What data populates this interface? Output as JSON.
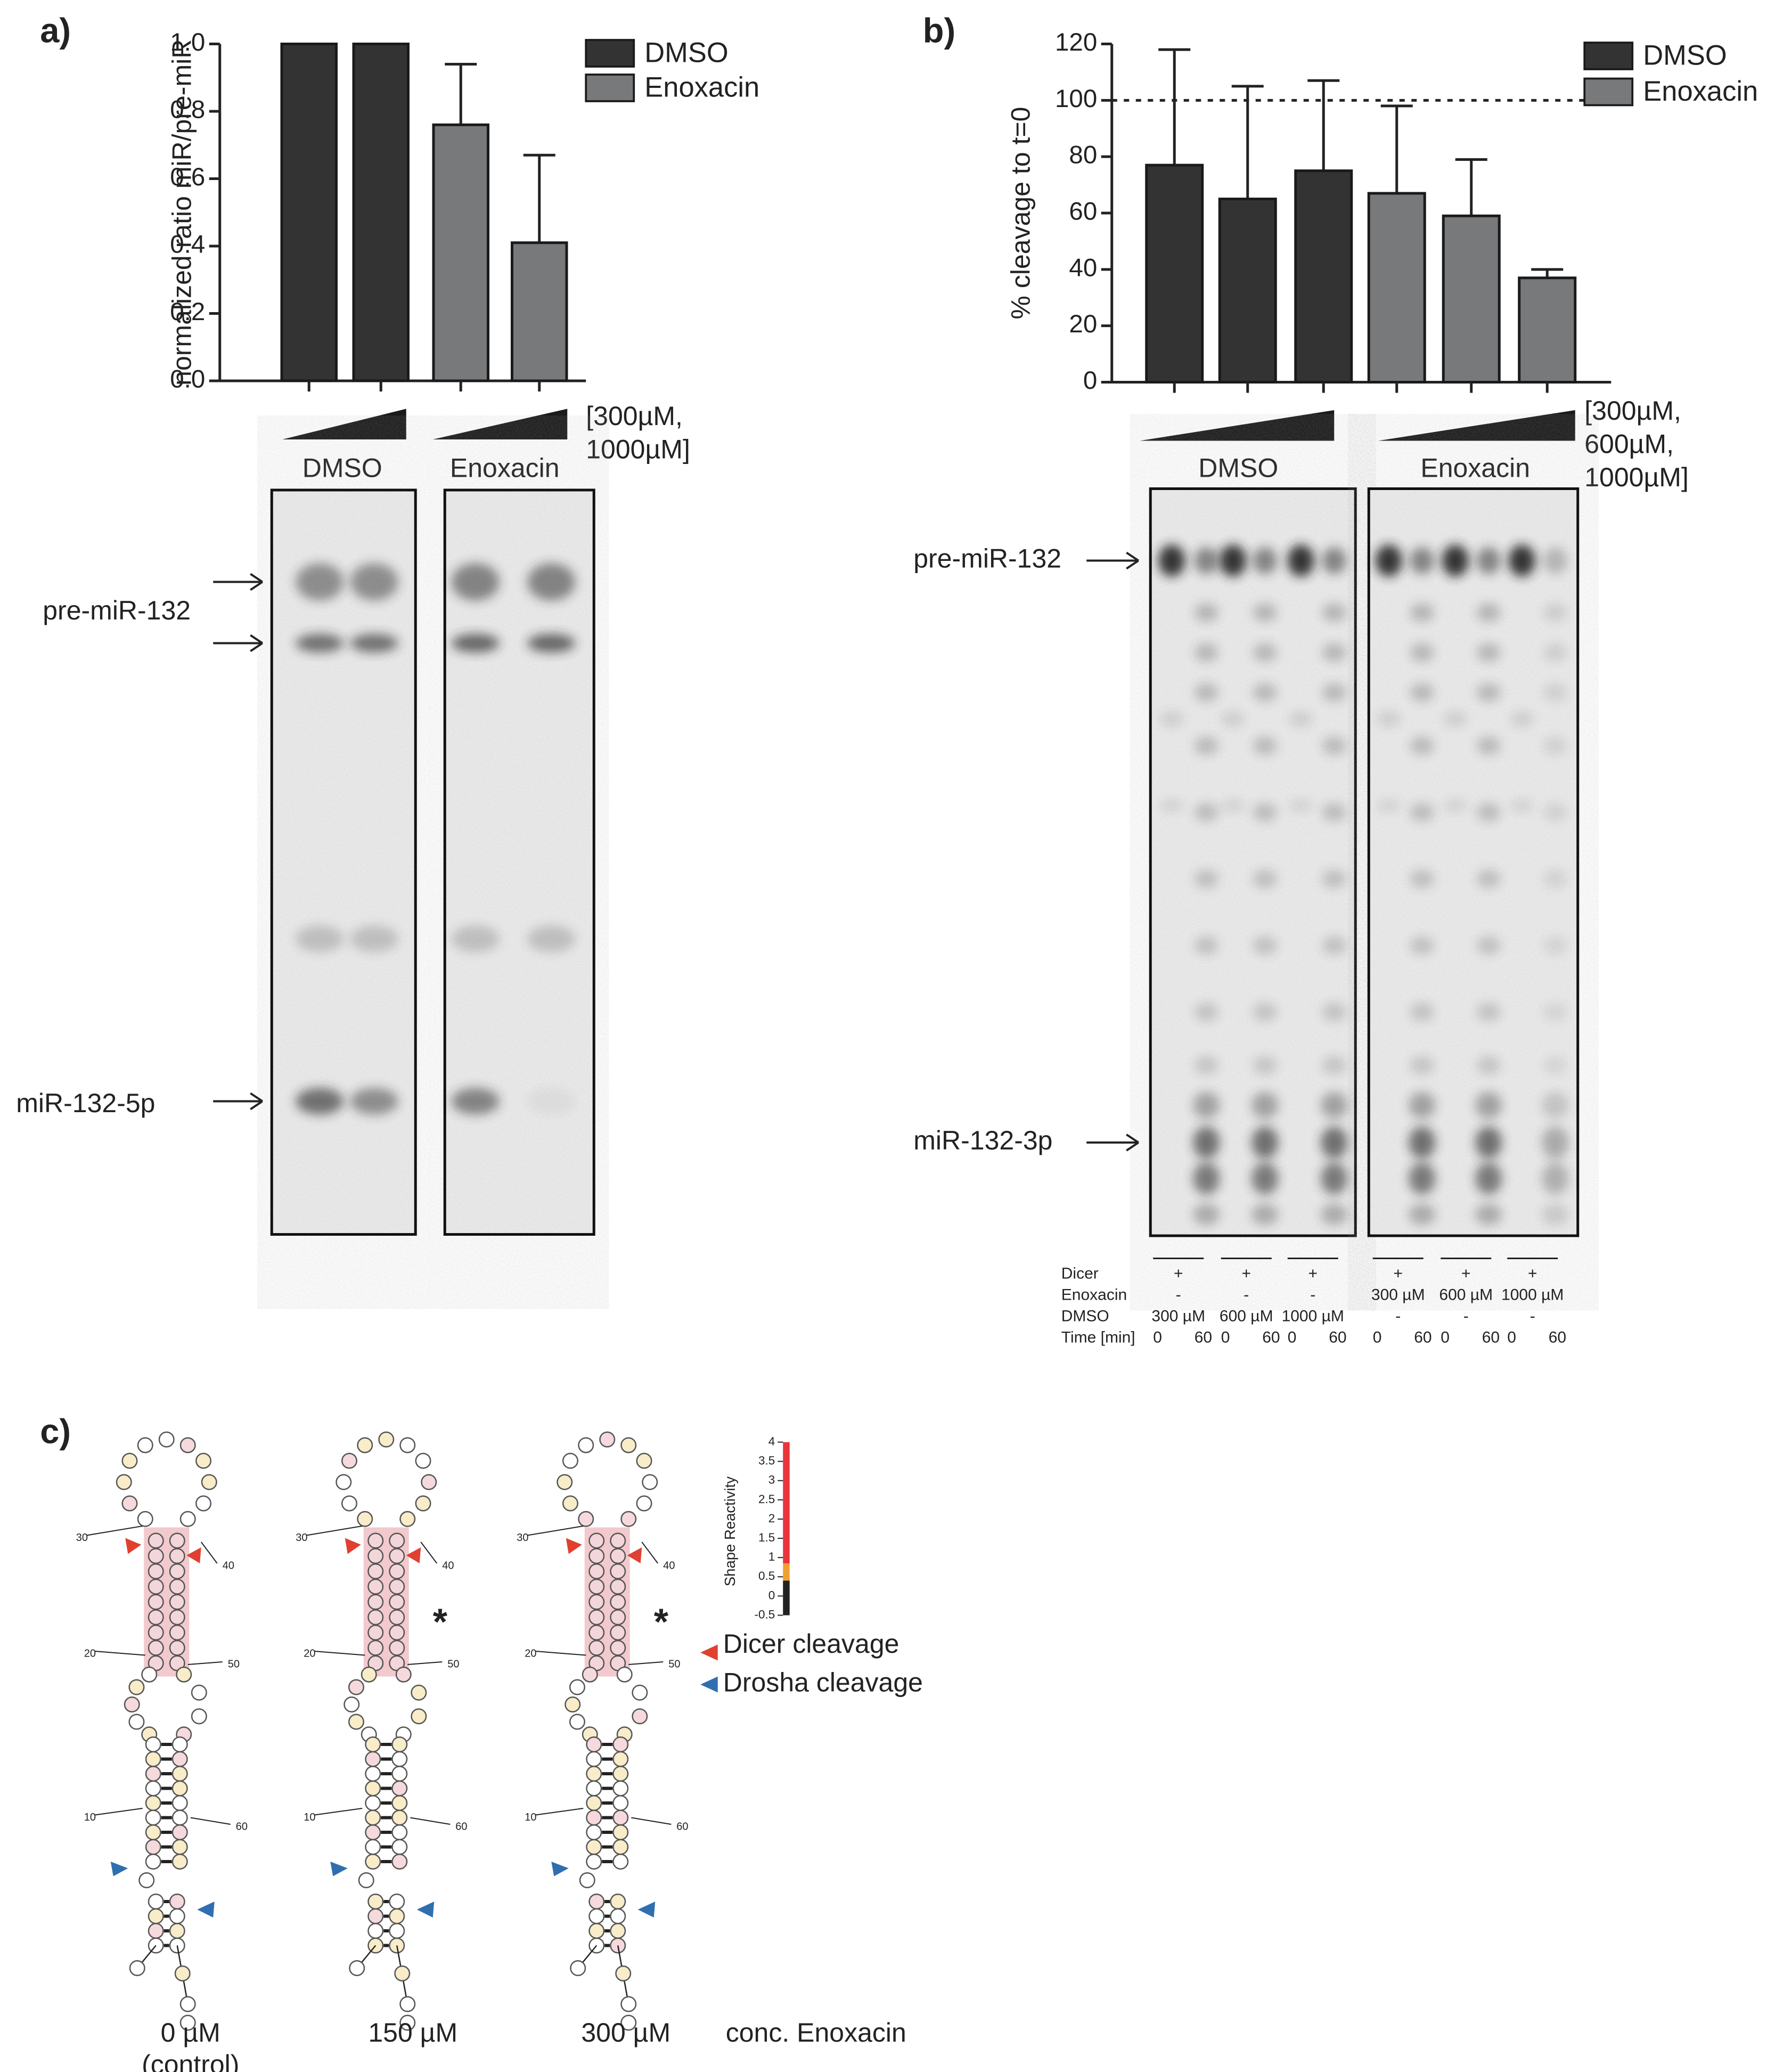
{
  "chart_data": [
    {
      "type": "bar",
      "panel": "a)",
      "ylabel": "normalized ratio miR/pre-miR",
      "series": [
        {
          "name": "DMSO",
          "color": "#333333",
          "values": [
            1,
            1
          ],
          "errors": [
            0,
            0
          ]
        },
        {
          "name": "Enoxacin",
          "color": "#77797b",
          "values": [
            0.76,
            0.41
          ],
          "errors": [
            0.18,
            0.26
          ]
        }
      ],
      "ylim": [
        0,
        1
      ],
      "yticks": [
        {
          "value": 0,
          "label": "0.0"
        },
        0.2,
        0.4,
        0.6,
        0.8,
        {
          "value": 1,
          "label": "1.0"
        }
      ],
      "concentration_label": [
        "[300µM,",
        "1000µM]"
      ],
      "legend": "upper right"
    },
    {
      "type": "bar",
      "panel": "b)",
      "ylabel": "% cleavage to t=0",
      "series": [
        {
          "name": "DMSO",
          "color": "#333333",
          "values": [
            77,
            65,
            75
          ],
          "errors": [
            41,
            40,
            32
          ]
        },
        {
          "name": "Enoxacin",
          "color": "#77797b",
          "values": [
            67,
            59,
            37
          ],
          "errors": [
            31,
            20,
            3
          ]
        }
      ],
      "ylim": [
        0,
        120
      ],
      "yticks": [
        0,
        20,
        40,
        60,
        80,
        100,
        120
      ],
      "reference_line": 100,
      "concentration_label": [
        "[300µM,",
        "600µM,",
        "1000µM]"
      ],
      "legend": "upper right"
    }
  ],
  "gels": [
    {
      "labels": [
        "pre-miR-132",
        "miR-132-5p"
      ]
    },
    {
      "labels": [
        "pre-miR-132",
        "miR-132-3p"
      ],
      "table": [
        {
          "label": "Dicer",
          "cells": [
            "+",
            "+",
            "+",
            "+",
            "+",
            "+"
          ]
        },
        {
          "label": "Enoxacin",
          "cells": [
            "-",
            "-",
            "-",
            "300 µM",
            "600 µM",
            "1000 µM"
          ]
        },
        {
          "label": "DMSO",
          "cells": [
            "300 µM",
            "600 µM",
            "1000 µM",
            "-",
            "-",
            "-"
          ]
        },
        {
          "label": "Time [min]",
          "cells": [
            0,
            60,
            0,
            60,
            0,
            60,
            0,
            60,
            0,
            60,
            0,
            60
          ]
        }
      ]
    }
  ],
  "panel_c": {
    "label": "c)",
    "structures": [
      {
        "label": "0 µM",
        "sublabel": "(control)"
      },
      {
        "label": "150 µM",
        "marker": "*"
      },
      {
        "label": "300 µM",
        "marker": "*"
      }
    ],
    "position_labels": [
      30,
      40,
      20,
      50,
      10,
      60
    ],
    "axis_label": "conc. Enoxacin",
    "legend": [
      "Dicer cleavage",
      "Drosha cleavage"
    ],
    "shape_scale": {
      "title": "Shape Reactivity",
      "lim": [
        -0.5,
        4
      ],
      "ticks": [
        4,
        3.5,
        3,
        2.5,
        2,
        1.5,
        1,
        0.5,
        0,
        -0.5
      ],
      "segments": [
        {
          "from": -0.5,
          "to": 0.4,
          "color": "#222222"
        },
        {
          "from": 0.4,
          "to": 0.85,
          "color": "#f0a030"
        },
        {
          "from": 0.85,
          "to": 4,
          "color": "#e8343a"
        }
      ]
    }
  }
}
